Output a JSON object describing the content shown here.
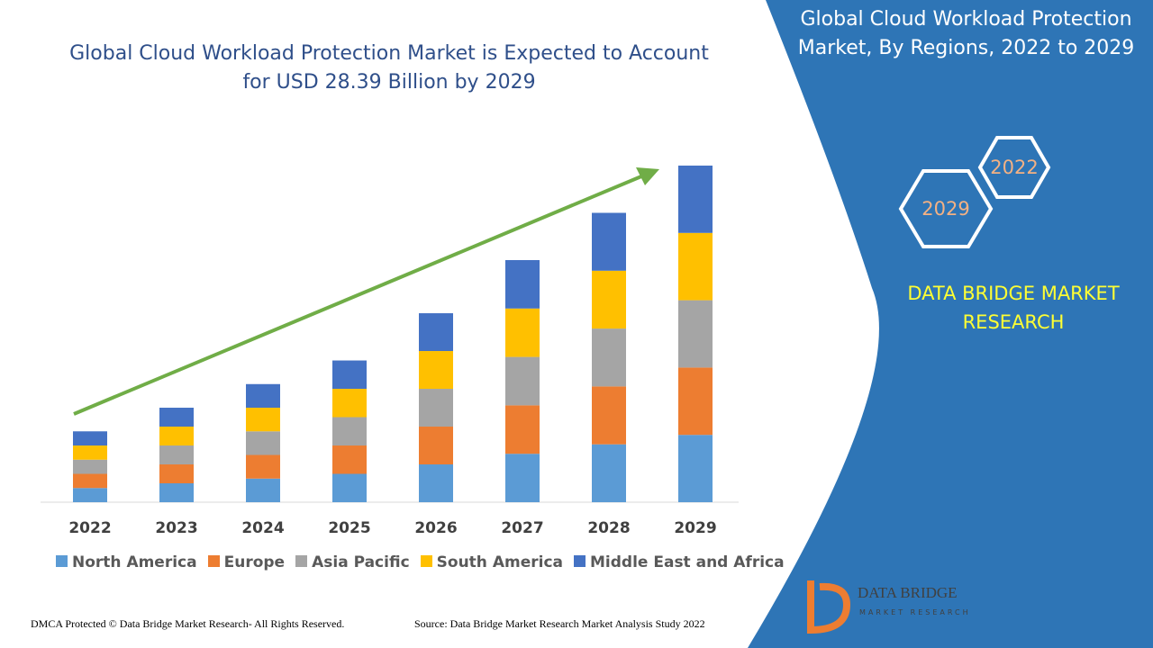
{
  "chart_data": {
    "type": "stacked-bar",
    "title": "Global Cloud Workload Protection Market is Expected to Account for USD 28.39 Billion by 2029",
    "categories": [
      "2022",
      "2023",
      "2024",
      "2025",
      "2026",
      "2027",
      "2028",
      "2029"
    ],
    "series": [
      {
        "name": "North America",
        "color": "#5b9bd5",
        "values": [
          1.2,
          1.6,
          2.0,
          2.4,
          3.2,
          4.1,
          4.9,
          5.7
        ]
      },
      {
        "name": "Europe",
        "color": "#ed7d31",
        "values": [
          1.2,
          1.6,
          2.0,
          2.4,
          3.2,
          4.1,
          4.9,
          5.7
        ]
      },
      {
        "name": "Asia Pacific",
        "color": "#a5a5a5",
        "values": [
          1.2,
          1.6,
          2.0,
          2.4,
          3.2,
          4.1,
          4.9,
          5.7
        ]
      },
      {
        "name": "South America",
        "color": "#ffc000",
        "values": [
          1.2,
          1.6,
          2.0,
          2.4,
          3.2,
          4.1,
          4.9,
          5.7
        ]
      },
      {
        "name": "Middle East and Africa",
        "color": "#4472c4",
        "values": [
          1.2,
          1.6,
          2.0,
          2.4,
          3.2,
          4.1,
          4.9,
          5.7
        ]
      }
    ]
  },
  "panel": {
    "title": "Global Cloud Workload Protection Market, By Regions, 2022 to 2029",
    "hex_labels": [
      "2022",
      "2029"
    ],
    "brand": "DATA BRIDGE MARKET RESEARCH"
  },
  "logo": {
    "name": "DATA BRIDGE",
    "tagline": "MARKET RESEARCH"
  },
  "footer": {
    "left": "DMCA Protected © Data Bridge Market Research- All Rights Reserved.",
    "right": "Source: Data Bridge Market Research Market Analysis Study 2022"
  }
}
